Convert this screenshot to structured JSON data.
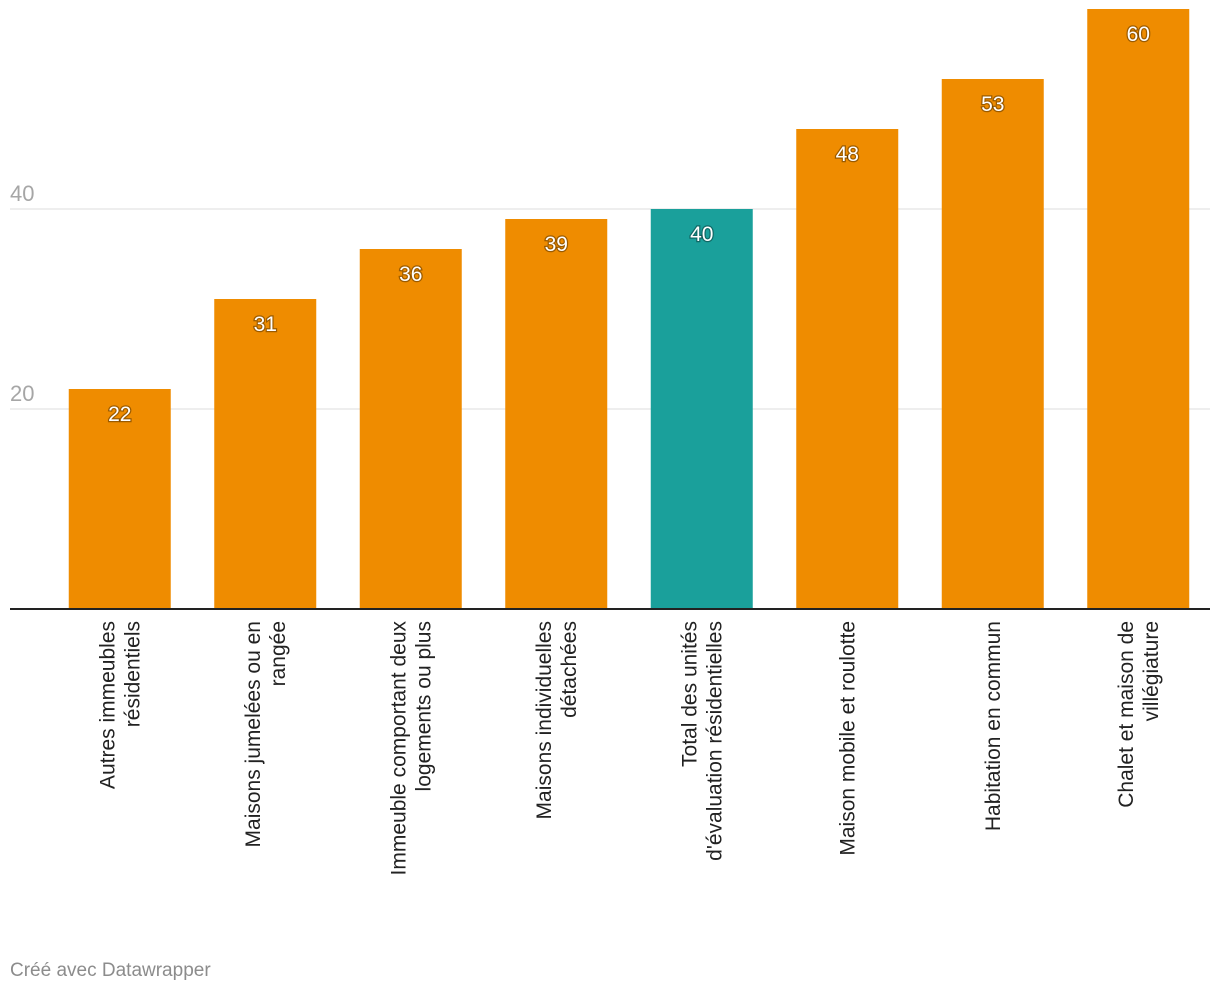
{
  "chart_data": {
    "type": "bar",
    "categories": [
      [
        "Autres immeubles",
        "résidentiels"
      ],
      [
        "Maisons jumelées ou en",
        "rangée"
      ],
      [
        "Immeuble comportant deux",
        "logements ou plus"
      ],
      [
        "Maisons individuelles",
        "détachées"
      ],
      [
        "Total des unités",
        "d'évaluation résidentielles"
      ],
      [
        "Maison mobile et roulotte"
      ],
      [
        "Habitation en commun"
      ],
      [
        "Chalet et maison de",
        "villégiature"
      ]
    ],
    "values": [
      22,
      31,
      36,
      39,
      40,
      48,
      53,
      60
    ],
    "value_labels": [
      "22",
      "31",
      "36",
      "39",
      "40",
      "48",
      "53",
      "60"
    ],
    "bar_colors": [
      "#ef8c00",
      "#ef8c00",
      "#ef8c00",
      "#ef8c00",
      "#1aa09b",
      "#ef8c00",
      "#ef8c00",
      "#ef8c00"
    ],
    "y_ticks": [
      20,
      40
    ],
    "y_tick_labels": [
      "20",
      "40"
    ],
    "ylim": [
      0,
      60
    ],
    "grid": true,
    "title": "",
    "xlabel": "",
    "ylabel": ""
  },
  "footer": {
    "credit": "Créé avec Datawrapper"
  }
}
